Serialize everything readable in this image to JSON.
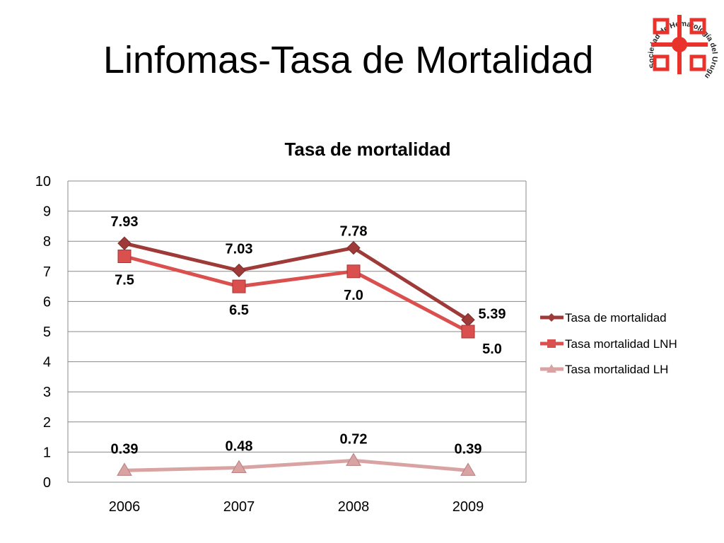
{
  "slide": {
    "title": "Linfomas-Tasa de Mortalidad",
    "logo_text": "Sociedad de Hematología del Uruguay"
  },
  "chart_data": {
    "type": "line",
    "title": "Tasa de mortalidad",
    "categories": [
      "2006",
      "2007",
      "2008",
      "2009"
    ],
    "ylim": [
      0,
      10
    ],
    "yticks": [
      0,
      1,
      2,
      3,
      4,
      5,
      6,
      7,
      8,
      9,
      10
    ],
    "grid": true,
    "legend_position": "right",
    "series": [
      {
        "name": "Tasa de mortalidad",
        "values": [
          7.93,
          7.03,
          7.78,
          5.39
        ],
        "labels": [
          "7.93",
          "7.03",
          "7.78",
          "5.39"
        ],
        "color": "#9e3a38",
        "marker": "diamond"
      },
      {
        "name": "Tasa mortalidad LNH",
        "values": [
          7.5,
          6.5,
          7.0,
          5.0
        ],
        "labels": [
          "7.5",
          "6.5",
          "7.0",
          "5.0"
        ],
        "color": "#d9504f",
        "marker": "square"
      },
      {
        "name": "Tasa mortalidad LH",
        "values": [
          0.39,
          0.48,
          0.72,
          0.39
        ],
        "labels": [
          "0.39",
          "0.48",
          "0.72",
          "0.39"
        ],
        "color": "#d9a3a3",
        "marker": "triangle"
      }
    ]
  },
  "colors": {
    "logo_red": "#e8322b",
    "gridline": "#888888"
  }
}
